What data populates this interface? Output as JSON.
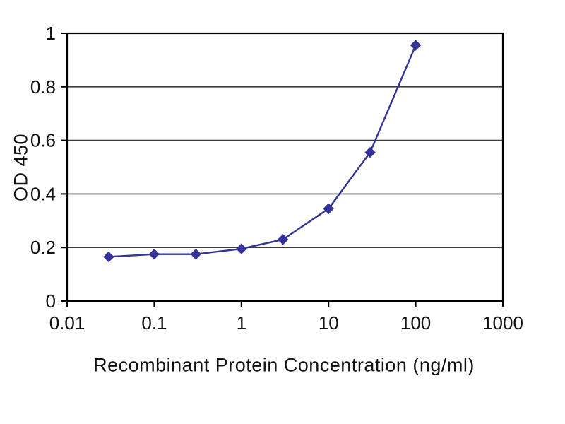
{
  "chart_data": {
    "type": "line",
    "title": "",
    "xlabel": "Recombinant Protein Concentration (ng/ml)",
    "ylabel": "OD 450",
    "xscale": "log",
    "xlim": [
      0.01,
      1000
    ],
    "ylim": [
      0,
      1
    ],
    "xticks": [
      0.01,
      0.1,
      1,
      10,
      100,
      1000
    ],
    "xtick_labels": [
      "0.01",
      "0.1",
      "1",
      "10",
      "100",
      "1000"
    ],
    "yticks": [
      0,
      0.2,
      0.4,
      0.6,
      0.8,
      1
    ],
    "ytick_labels": [
      "0",
      "0.2",
      "0.4",
      "0.6",
      "0.8",
      "1"
    ],
    "grid": "horizontal",
    "legend": "none",
    "series": [
      {
        "name": "OD 450",
        "color": "#333399",
        "marker": "diamond",
        "x": [
          0.03,
          0.1,
          0.3,
          1,
          3,
          10,
          30,
          100
        ],
        "y": [
          0.165,
          0.175,
          0.175,
          0.195,
          0.23,
          0.345,
          0.555,
          0.955
        ]
      }
    ],
    "plot_border_color": "#000000",
    "gridline_color": "#3d3d3d"
  }
}
